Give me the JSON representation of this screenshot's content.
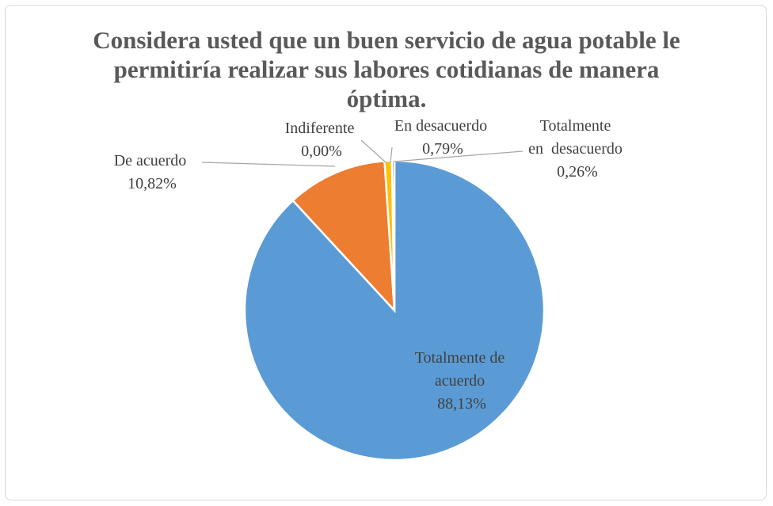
{
  "chart_data": {
    "type": "pie",
    "title_lines": [
      "Considera usted que un buen servicio de agua potable le",
      "permitiría realizar sus labores cotidianas de manera",
      "óptima."
    ],
    "slices": [
      {
        "name": "Totalmente de acuerdo",
        "value": 88.13,
        "label_lines": [
          "Totalmente de",
          "acuerdo",
          "88,13%"
        ],
        "color": "#5b9bd5"
      },
      {
        "name": "De acuerdo",
        "value": 10.82,
        "label_lines": [
          "De acuerdo",
          "10,82%"
        ],
        "color": "#ed7d31"
      },
      {
        "name": "Indiferente",
        "value": 0.0,
        "label_lines": [
          "Indiferente",
          "0,00%"
        ],
        "color": "#a5a5a5"
      },
      {
        "name": "En desacuerdo",
        "value": 0.79,
        "label_lines": [
          "En desacuerdo",
          "0,79%"
        ],
        "color": "#ffc000"
      },
      {
        "name": "Totalmente en desacuerdo",
        "value": 0.26,
        "label_lines": [
          "Totalmente",
          "en  desacuerdo",
          "0,26%"
        ],
        "color": "#4472c4"
      }
    ],
    "legend": "none"
  }
}
